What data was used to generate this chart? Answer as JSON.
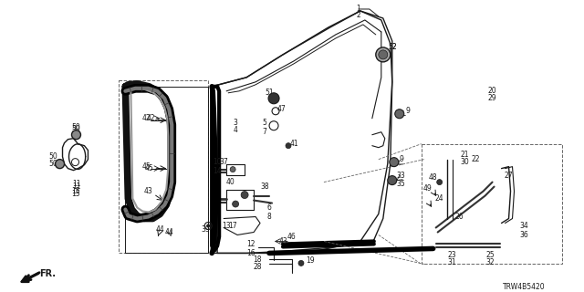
{
  "bg_color": "#ffffff",
  "diagram_code": "TRW4B5420",
  "fr_label": "FR.",
  "col": "#1a1a1a",
  "col_dash": "#666666"
}
